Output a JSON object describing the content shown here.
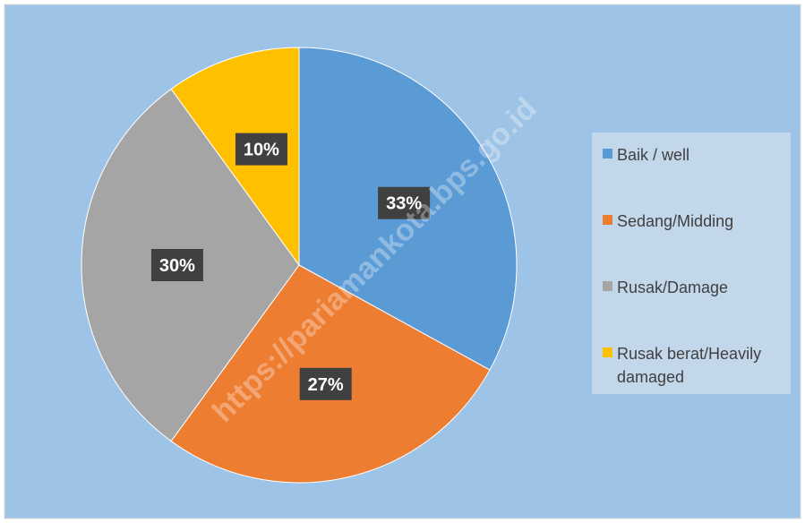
{
  "chart_data": {
    "type": "pie",
    "categories": [
      "Baik / well",
      "Sedang/Midding",
      "Rusak/Damage",
      "Rusak berat/Heavily damaged"
    ],
    "values": [
      33,
      27,
      30,
      10
    ],
    "data_labels": [
      "33%",
      "27%",
      "30%",
      "10%"
    ],
    "colors": [
      "#5b9bd5",
      "#ed7d31",
      "#a5a5a5",
      "#ffc000"
    ],
    "legend_position": "right",
    "start_angle_deg": 0,
    "direction": "clockwise"
  },
  "background_color": "#9dc3e6",
  "legend_background": "#c3d7ea",
  "label_box_color": "#404040",
  "watermark": "https://pariamankota.bps.go.id"
}
